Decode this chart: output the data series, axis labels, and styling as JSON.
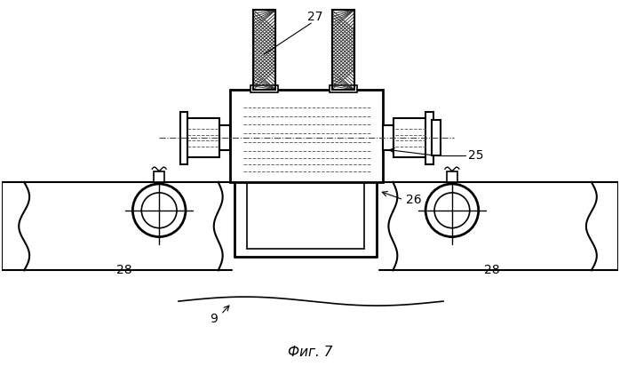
{
  "background_color": "#ffffff",
  "line_color": "#000000",
  "label_color": "#000000",
  "title": "Фиг. 7",
  "fig_width": 6.98,
  "fig_height": 4.12,
  "dpi": 100
}
